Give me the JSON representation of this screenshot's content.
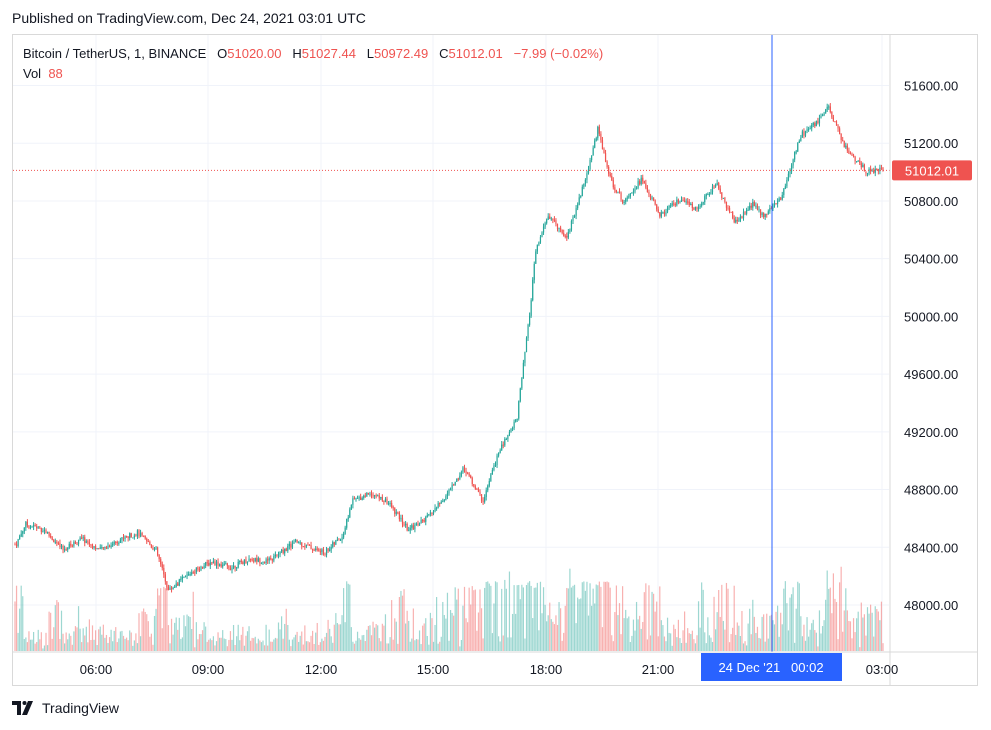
{
  "header": {
    "published": "Published on TradingView.com, Dec 24, 2021 03:01 UTC"
  },
  "legend": {
    "symbol": "Bitcoin / TetherUS, 1, BINANCE",
    "open_label": "O",
    "open": "51020.00",
    "high_label": "H",
    "high": "51027.44",
    "low_label": "L",
    "low": "50972.49",
    "close_label": "C",
    "close": "51012.01",
    "change": "−7.99 (−0.02%)",
    "vol_label": "Vol",
    "vol": "88"
  },
  "crosshair": {
    "label": "24 Dec '21   00:02"
  },
  "footer": {
    "brand": "TradingView",
    "logo_icon": "tradingview-logo-icon"
  },
  "colors": {
    "up": "#26a69a",
    "down": "#ef5350",
    "crosshair": "#2962ff",
    "price_tag": "#ef5350"
  },
  "chart_data": {
    "type": "candlestick",
    "title": "Bitcoin / TetherUS, 1, BINANCE",
    "interval": "1 minute",
    "y_ticks": [
      "51600.00",
      "51200.00",
      "50800.00",
      "50400.00",
      "50000.00",
      "49600.00",
      "49200.00",
      "48800.00",
      "48400.00",
      "48000.00"
    ],
    "x_ticks": [
      "06:00",
      "09:00",
      "12:00",
      "15:00",
      "18:00",
      "21:00",
      "03:00"
    ],
    "ylim": [
      47870,
      51870
    ],
    "last_price": "51012.01",
    "grid": true,
    "price_path": [
      {
        "t": "04:15",
        "price": 48420
      },
      {
        "t": "04:30",
        "price": 48560
      },
      {
        "t": "05:00",
        "price": 48520
      },
      {
        "t": "05:30",
        "price": 48380
      },
      {
        "t": "06:00",
        "price": 48460
      },
      {
        "t": "06:30",
        "price": 48380
      },
      {
        "t": "07:00",
        "price": 48450
      },
      {
        "t": "07:30",
        "price": 48500
      },
      {
        "t": "08:00",
        "price": 48380
      },
      {
        "t": "08:20",
        "price": 48100
      },
      {
        "t": "09:00",
        "price": 48240
      },
      {
        "t": "09:30",
        "price": 48300
      },
      {
        "t": "10:00",
        "price": 48260
      },
      {
        "t": "10:30",
        "price": 48320
      },
      {
        "t": "11:00",
        "price": 48300
      },
      {
        "t": "11:45",
        "price": 48440
      },
      {
        "t": "12:30",
        "price": 48360
      },
      {
        "t": "13:00",
        "price": 48480
      },
      {
        "t": "13:15",
        "price": 48720
      },
      {
        "t": "13:45",
        "price": 48780
      },
      {
        "t": "14:15",
        "price": 48700
      },
      {
        "t": "14:45",
        "price": 48520
      },
      {
        "t": "15:15",
        "price": 48600
      },
      {
        "t": "15:45",
        "price": 48750
      },
      {
        "t": "16:15",
        "price": 48950
      },
      {
        "t": "16:45",
        "price": 48720
      },
      {
        "t": "17:10",
        "price": 49050
      },
      {
        "t": "17:40",
        "price": 49300
      },
      {
        "t": "18:00",
        "price": 50000
      },
      {
        "t": "18:10",
        "price": 50450
      },
      {
        "t": "18:30",
        "price": 50700
      },
      {
        "t": "19:00",
        "price": 50550
      },
      {
        "t": "19:30",
        "price": 50950
      },
      {
        "t": "19:50",
        "price": 51300
      },
      {
        "t": "20:10",
        "price": 50950
      },
      {
        "t": "20:30",
        "price": 50800
      },
      {
        "t": "21:00",
        "price": 50950
      },
      {
        "t": "21:30",
        "price": 50700
      },
      {
        "t": "22:00",
        "price": 50800
      },
      {
        "t": "22:30",
        "price": 50750
      },
      {
        "t": "23:00",
        "price": 50920
      },
      {
        "t": "23:30",
        "price": 50650
      },
      {
        "t": "00:00",
        "price": 50780
      },
      {
        "t": "00:15",
        "price": 50700
      },
      {
        "t": "00:45",
        "price": 50820
      },
      {
        "t": "01:15",
        "price": 51250
      },
      {
        "t": "01:45",
        "price": 51350
      },
      {
        "t": "02:00",
        "price": 51450
      },
      {
        "t": "02:30",
        "price": 51150
      },
      {
        "t": "03:00",
        "price": 51012
      }
    ]
  }
}
